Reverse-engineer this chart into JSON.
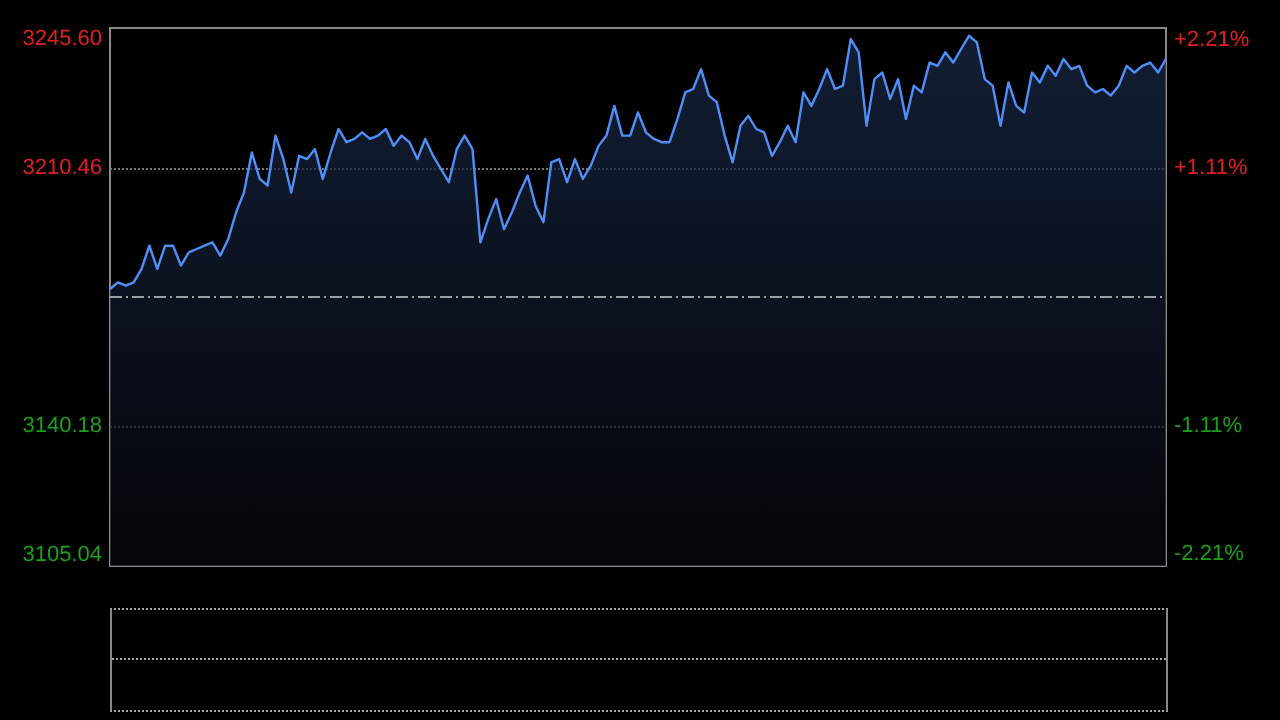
{
  "chart_data": {
    "type": "area",
    "categories": [
      null,
      null,
      null,
      null,
      null,
      null,
      null,
      null,
      null,
      null,
      null,
      null,
      null,
      null,
      null,
      null,
      null,
      null,
      null,
      null,
      null,
      null,
      null,
      null,
      null,
      null,
      null,
      null,
      null,
      null,
      null,
      null,
      null,
      null,
      null,
      null,
      null,
      null,
      null,
      null,
      null,
      null,
      null,
      null,
      null,
      null,
      null,
      null,
      null,
      null,
      null,
      null,
      null,
      null,
      null,
      null,
      null,
      null,
      null,
      null,
      null,
      null,
      null,
      null,
      null,
      null,
      null,
      null,
      null,
      null,
      null,
      null,
      null,
      null,
      null,
      null,
      null,
      null,
      null,
      null,
      null,
      null,
      null,
      null,
      null,
      null,
      null,
      null,
      null,
      null,
      null,
      null,
      null,
      null,
      null,
      null,
      null,
      null,
      null,
      null,
      null,
      null,
      null,
      null,
      null,
      null,
      null,
      null,
      null,
      null,
      null,
      null,
      null,
      null,
      null,
      null,
      null,
      null,
      null,
      null,
      null,
      null,
      null,
      null,
      null,
      null,
      null,
      null,
      null,
      null,
      null,
      null,
      null,
      null,
      null
    ],
    "series": [
      {
        "color": "#4f8ff7",
        "values": [
          3177.5,
          3179.3,
          3178.4,
          3179.3,
          3183.0,
          3189.3,
          3183.0,
          3189.3,
          3189.3,
          3183.9,
          3187.5,
          3188.4,
          3189.3,
          3190.2,
          3186.6,
          3191.1,
          3198.4,
          3203.8,
          3214.7,
          3207.5,
          3205.7,
          3219.3,
          3212.9,
          3203.8,
          3213.8,
          3212.9,
          3215.6,
          3207.5,
          3214.7,
          3221.1,
          3217.5,
          3218.4,
          3220.2,
          3218.4,
          3219.3,
          3221.1,
          3216.5,
          3219.3,
          3217.5,
          3212.9,
          3218.4,
          3213.8,
          3210.2,
          3206.6,
          3215.6,
          3219.3,
          3215.6,
          3190.2,
          3196.6,
          3202.0,
          3193.8,
          3198.4,
          3203.8,
          3208.4,
          3200.2,
          3195.7,
          3212.0,
          3212.9,
          3206.6,
          3212.9,
          3207.5,
          3211.1,
          3216.5,
          3219.3,
          3227.4,
          3219.3,
          3219.3,
          3225.6,
          3220.2,
          3218.4,
          3217.5,
          3217.5,
          3223.8,
          3231.1,
          3232.0,
          3237.4,
          3230.2,
          3228.4,
          3219.3,
          3212.0,
          3222.0,
          3224.7,
          3221.1,
          3220.2,
          3213.8,
          3217.5,
          3222.0,
          3217.5,
          3231.1,
          3227.4,
          3232.0,
          3237.4,
          3232.0,
          3232.9,
          3245.6,
          3242.0,
          3222.0,
          3234.7,
          3236.5,
          3229.3,
          3234.7,
          3223.8,
          3232.9,
          3231.1,
          3239.2,
          3238.3,
          3242.0,
          3239.2,
          3242.9,
          3246.5,
          3244.7,
          3234.7,
          3232.9,
          3222.0,
          3233.8,
          3227.4,
          3225.6,
          3236.5,
          3233.8,
          3238.3,
          3235.6,
          3240.2,
          3237.4,
          3238.3,
          3232.9,
          3231.1,
          3232.0,
          3230.2,
          3232.9,
          3238.3,
          3236.5,
          3238.3,
          3239.2,
          3236.5,
          3240.2
        ]
      }
    ],
    "ylim": [
      3102.02,
      3248.62
    ],
    "yticks": [
      {
        "value": 3105.04,
        "label": "3105.04"
      },
      {
        "value": 3140.18,
        "label": "3140.18"
      },
      {
        "value": 3210.46,
        "label": "3210.46"
      },
      {
        "value": 3245.6,
        "label": "3245.60"
      }
    ],
    "y2lim": [
      -2.31,
      2.31
    ],
    "y2ticks": [
      {
        "value": -2.21,
        "label": "-2.21%"
      },
      {
        "value": -1.11,
        "label": "-1.11%"
      },
      {
        "value": 1.11,
        "label": "+1.11%"
      },
      {
        "value": 2.21,
        "label": "+2.21%"
      }
    ],
    "ref_lines": [
      {
        "axis": "y",
        "value": 3175.32,
        "line_style": "dashed",
        "color": "#9aa0a6"
      }
    ],
    "grid": "y",
    "line_style": "solid"
  }
}
